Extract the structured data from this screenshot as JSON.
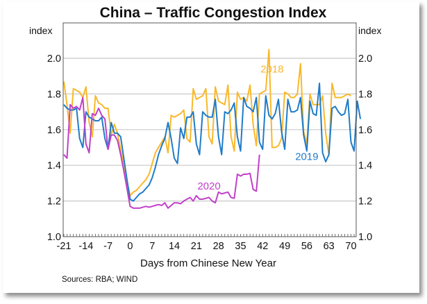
{
  "chart_data": {
    "type": "line",
    "title": "China – Traffic Congestion Index",
    "xlabel": "Days from Chinese New Year",
    "ylabel_left": "index",
    "ylabel_right": "index",
    "source": "Sources:  RBA; WIND",
    "xlim": [
      -21,
      71
    ],
    "ylim": [
      1.0,
      2.1
    ],
    "xticks": [
      -21,
      -14,
      -7,
      0,
      7,
      14,
      21,
      28,
      35,
      42,
      49,
      56,
      63,
      70
    ],
    "xtick_labels": [
      "-21",
      "-14",
      "-7",
      "0",
      "7",
      "14",
      "21",
      "28",
      "35",
      "42",
      "49",
      "56",
      "63",
      "70"
    ],
    "yticks": [
      1.0,
      1.2,
      1.4,
      1.6,
      1.8,
      2.0
    ],
    "ytick_labels": [
      "1.0",
      "1.2",
      "1.4",
      "1.6",
      "1.8",
      "2.0"
    ],
    "grid": true,
    "legend": "inline-labels",
    "series": [
      {
        "name": "2018",
        "label": "2018",
        "color": "#F9B82A",
        "x_start": -21,
        "values": [
          1.87,
          1.74,
          1.58,
          1.83,
          1.82,
          1.81,
          1.78,
          1.84,
          1.64,
          1.56,
          1.79,
          1.75,
          1.74,
          1.72,
          1.72,
          1.57,
          1.63,
          1.58,
          1.49,
          1.4,
          1.31,
          1.23,
          1.25,
          1.26,
          1.28,
          1.3,
          1.32,
          1.35,
          1.41,
          1.47,
          1.5,
          1.53,
          1.56,
          1.47,
          1.68,
          1.67,
          1.68,
          1.69,
          1.71,
          1.55,
          1.53,
          1.83,
          1.77,
          1.78,
          1.79,
          1.83,
          1.56,
          1.52,
          1.84,
          1.76,
          1.75,
          1.74,
          1.85,
          1.56,
          1.48,
          1.81,
          1.77,
          1.78,
          1.76,
          1.85,
          1.63,
          1.51,
          1.8,
          1.81,
          1.82,
          2.05,
          1.5,
          1.5,
          1.51,
          1.55,
          1.81,
          1.8,
          1.78,
          1.78,
          1.8,
          1.97,
          1.59,
          1.52,
          1.8,
          1.74,
          1.74,
          1.74,
          1.79,
          1.58,
          1.46,
          1.86,
          1.78,
          1.78,
          1.78,
          1.79,
          1.8,
          1.79
        ]
      },
      {
        "name": "2019",
        "label": "2019",
        "color": "#1F7BC8",
        "x_start": -21,
        "values": [
          1.74,
          1.72,
          1.71,
          1.71,
          1.72,
          1.55,
          1.5,
          1.7,
          1.67,
          1.66,
          1.65,
          1.65,
          1.67,
          1.55,
          1.49,
          1.64,
          1.58,
          1.58,
          1.56,
          1.44,
          1.32,
          1.21,
          1.2,
          1.22,
          1.24,
          1.25,
          1.27,
          1.29,
          1.33,
          1.39,
          1.46,
          1.51,
          1.55,
          1.64,
          1.55,
          1.44,
          1.41,
          1.61,
          1.55,
          1.67,
          1.67,
          1.7,
          1.52,
          1.46,
          1.7,
          1.68,
          1.67,
          1.67,
          1.77,
          1.56,
          1.46,
          1.7,
          1.69,
          1.71,
          1.75,
          1.56,
          1.48,
          1.78,
          1.73,
          1.72,
          1.7,
          1.78,
          1.53,
          1.49,
          1.79,
          1.68,
          1.66,
          1.69,
          1.77,
          1.59,
          1.49,
          1.77,
          1.7,
          1.7,
          1.71,
          1.78,
          1.57,
          1.48,
          1.76,
          1.69,
          1.68,
          1.86,
          1.47,
          1.42,
          1.46,
          1.72,
          1.73,
          1.7,
          1.68,
          1.69,
          1.77,
          1.53,
          1.48,
          1.76,
          1.66
        ]
      },
      {
        "name": "2020",
        "label": "2020",
        "color": "#C040C8",
        "x_start": -21,
        "values": [
          1.46,
          1.44,
          1.74,
          1.72,
          1.73,
          1.71,
          1.78,
          1.52,
          1.47,
          1.69,
          1.68,
          1.72,
          1.68,
          1.66,
          1.49,
          1.57,
          1.57,
          1.54,
          1.46,
          1.37,
          1.27,
          1.17,
          1.16,
          1.16,
          1.16,
          1.165,
          1.17,
          1.165,
          1.17,
          1.175,
          1.18,
          1.175,
          1.19,
          1.16,
          1.175,
          1.19,
          1.19,
          1.185,
          1.2,
          1.21,
          1.22,
          1.2,
          1.23,
          1.21,
          1.21,
          1.215,
          1.22,
          1.2,
          1.19,
          1.25,
          1.24,
          1.245,
          1.25,
          1.22,
          1.215,
          1.35,
          1.34,
          1.35,
          1.35,
          1.355,
          1.265,
          1.255,
          1.46
        ]
      }
    ],
    "annotations": [
      {
        "text": "2018",
        "series": "2018",
        "at_x": 45,
        "at_y": 1.92
      },
      {
        "text": "2019",
        "series": "2019",
        "at_x": 56,
        "at_y": 1.43
      },
      {
        "text": "2020",
        "series": "2020",
        "at_x": 25,
        "at_y": 1.265
      }
    ]
  }
}
